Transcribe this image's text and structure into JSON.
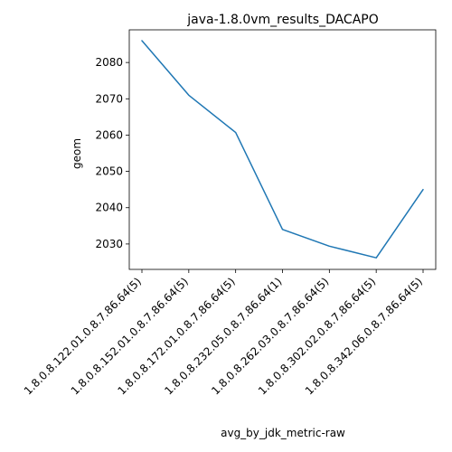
{
  "chart_data": {
    "type": "line",
    "title": "java-1.8.0vm_results_DACAPO",
    "xlabel": "avg_by_jdk_metric-raw",
    "ylabel": "geom",
    "categories": [
      "1.8.0.8.122.01.0.8.7.86.64(5)",
      "1.8.0.8.152.01.0.8.7.86.64(5)",
      "1.8.0.8.172.01.0.8.7.86.64(5)",
      "1.8.0.8.232.05.0.8.7.86.64(1)",
      "1.8.0.8.262.03.0.8.7.86.64(5)",
      "1.8.0.8.302.02.0.8.7.86.64(5)",
      "1.8.0.8.342.06.0.8.7.86.64(5)"
    ],
    "series": [
      {
        "values": [
          2086.0,
          2071.0,
          2060.7,
          2034.0,
          2029.4,
          2026.2,
          2045.0
        ]
      }
    ],
    "ylim": [
      2023.0,
      2089.0
    ],
    "yticks": [
      2030,
      2040,
      2050,
      2060,
      2070,
      2080
    ],
    "grid": false,
    "line_color": "#1f77b4"
  }
}
